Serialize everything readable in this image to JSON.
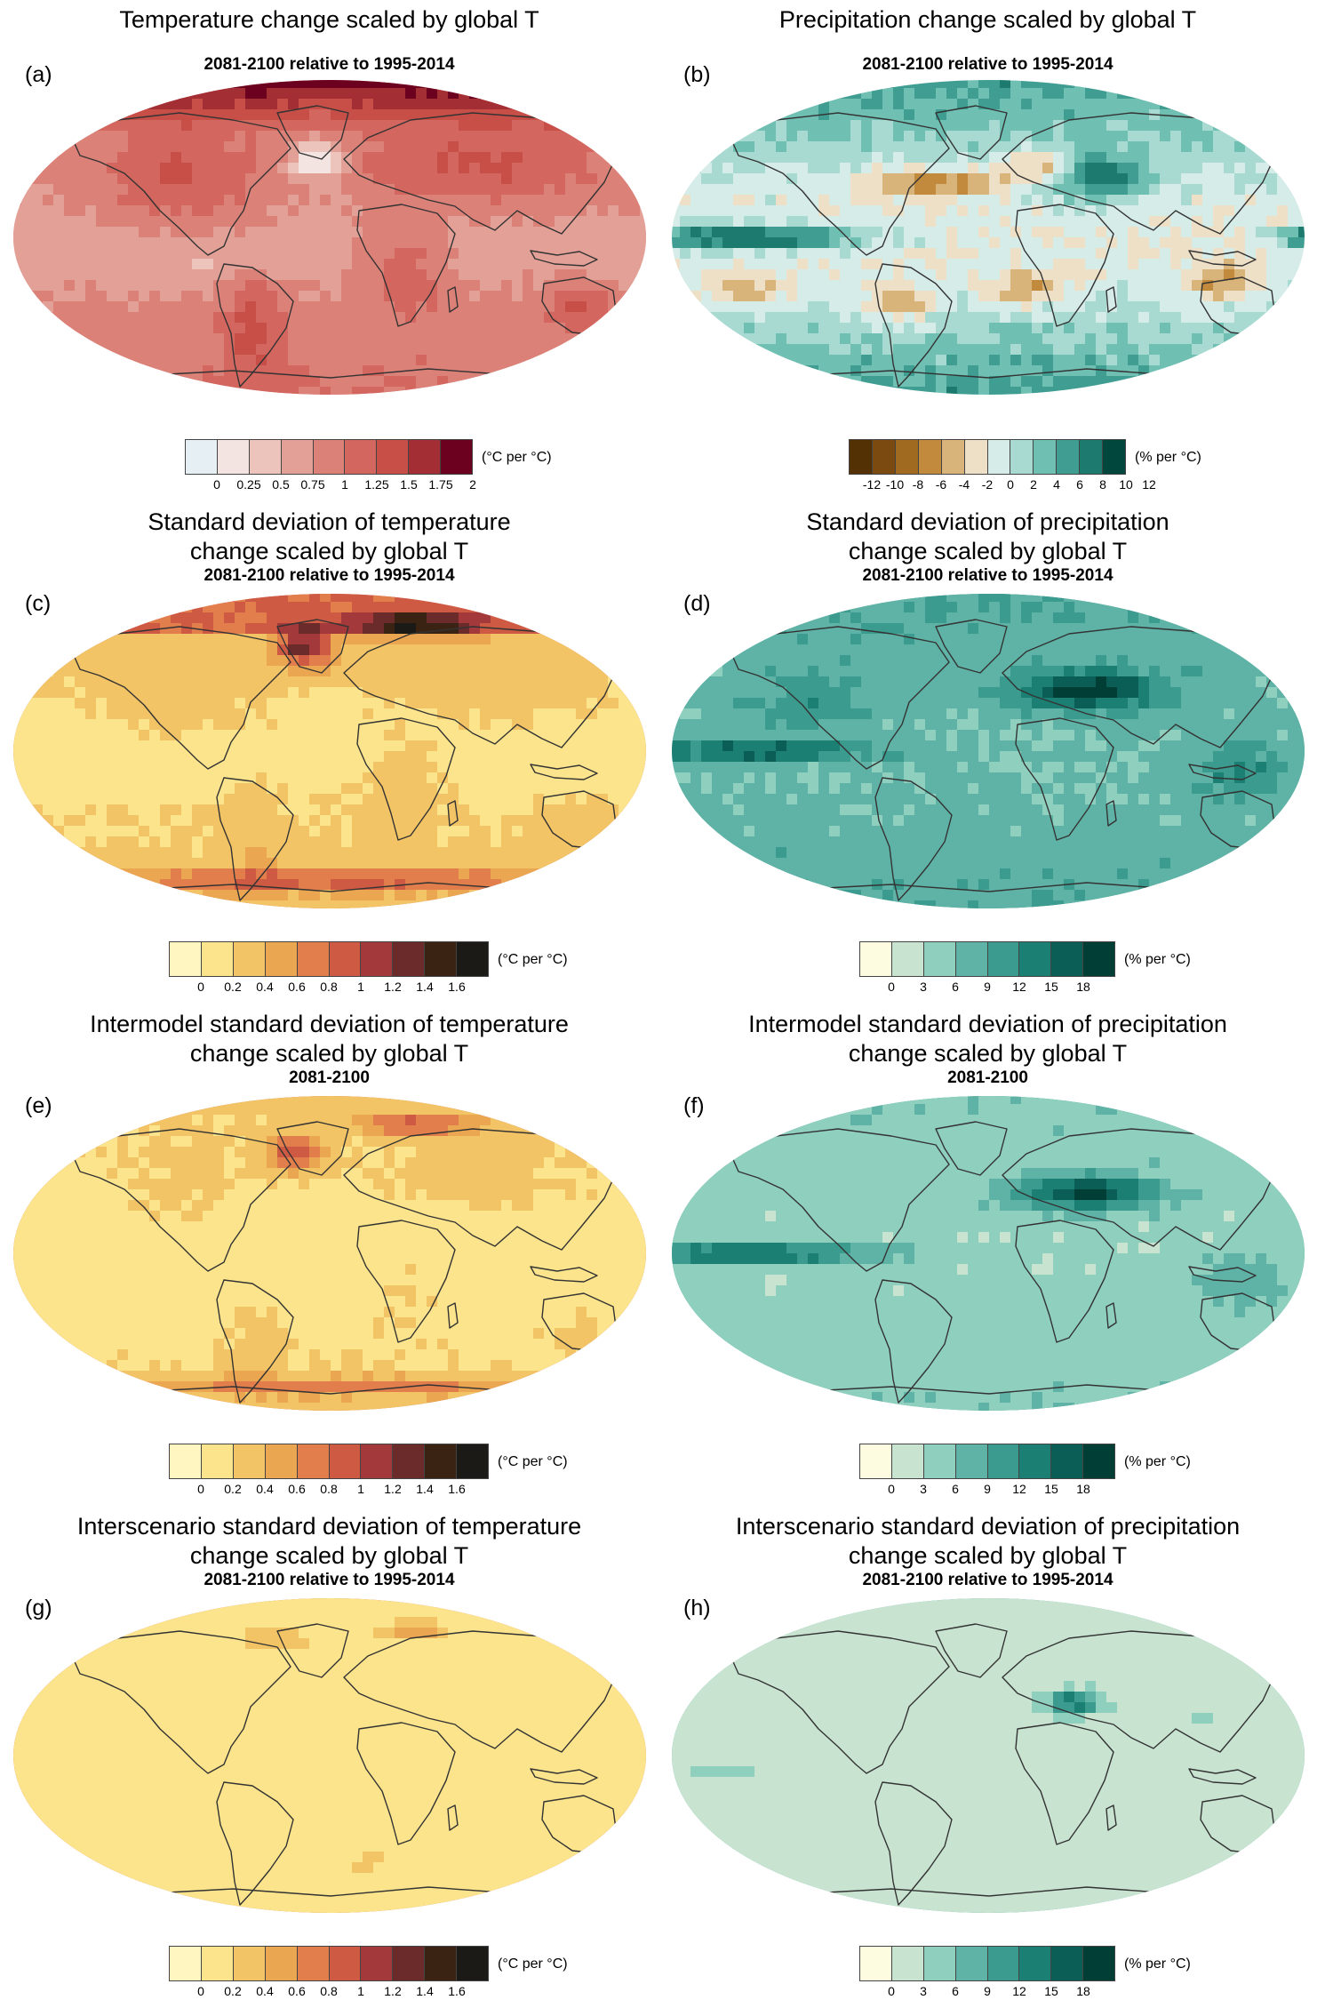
{
  "palettes": {
    "temp_change": [
      "#e5eff4",
      "#f3e4e2",
      "#edc4bc",
      "#e3a097",
      "#dc8178",
      "#d3665e",
      "#c84e48",
      "#a32e34",
      "#6b001f"
    ],
    "precip_change": [
      "#543005",
      "#7a4a10",
      "#a06a21",
      "#c18a3c",
      "#d8b47b",
      "#eee0c6",
      "#d6ece8",
      "#a9dad2",
      "#6fbfb3",
      "#3f9d92",
      "#1c7a6e",
      "#01473e"
    ],
    "temp_sd": [
      "#fff6c2",
      "#fbe48c",
      "#f2c465",
      "#eba651",
      "#e27e4c",
      "#cf5a43",
      "#a3393a",
      "#6b2b2b",
      "#3a2313",
      "#1b1a17"
    ],
    "precip_sd": [
      "#fdfbe0",
      "#c8e4d1",
      "#8fcfbe",
      "#5fb3a6",
      "#3b9b8e",
      "#1c7f73",
      "#0b5e55",
      "#013f36"
    ]
  },
  "panels": [
    {
      "id": "a",
      "label": "(a)",
      "title": "Temperature change scaled by global T",
      "subtitle": "2081-2100 relative to 1995-2014",
      "palette": "temp_change",
      "unit": "(°C per °C)",
      "ticks": [
        "0",
        "0.25",
        "0.5",
        "0.75",
        "1",
        "1.25",
        "1.5",
        "1.75",
        "2"
      ],
      "range": [
        0,
        2.0
      ]
    },
    {
      "id": "b",
      "label": "(b)",
      "title": "Precipitation change scaled by global T",
      "subtitle": "2081-2100 relative to 1995-2014",
      "palette": "precip_change",
      "unit": "(% per °C)",
      "ticks": [
        "-12",
        "-10",
        "-8",
        "-6",
        "-4",
        "-2",
        "0",
        "2",
        "4",
        "6",
        "8",
        "10",
        "12"
      ],
      "range": [
        -12,
        12
      ]
    },
    {
      "id": "c",
      "label": "(c)",
      "title": "Standard deviation of temperature\nchange scaled by global T",
      "subtitle": "2081-2100 relative to 1995-2014",
      "palette": "temp_sd",
      "unit": "(°C per °C)",
      "ticks": [
        "0",
        "0.2",
        "0.4",
        "0.6",
        "0.8",
        "1",
        "1.2",
        "1.4",
        "1.6"
      ],
      "range": [
        0,
        1.6
      ]
    },
    {
      "id": "d",
      "label": "(d)",
      "title": "Standard deviation of precipitation\nchange scaled by global T",
      "subtitle": "2081-2100 relative to 1995-2014",
      "palette": "precip_sd",
      "unit": "(% per °C)",
      "ticks": [
        "0",
        "3",
        "6",
        "9",
        "12",
        "15",
        "18"
      ],
      "range": [
        0,
        18
      ]
    },
    {
      "id": "e",
      "label": "(e)",
      "title": "Intermodel standard deviation of temperature\nchange scaled by global T",
      "subtitle": "2081-2100",
      "palette": "temp_sd",
      "unit": "(°C per °C)",
      "ticks": [
        "0",
        "0.2",
        "0.4",
        "0.6",
        "0.8",
        "1",
        "1.2",
        "1.4",
        "1.6"
      ],
      "range": [
        0,
        1.6
      ]
    },
    {
      "id": "f",
      "label": "(f)",
      "title": "Intermodel standard deviation of precipitation\nchange scaled by global T",
      "subtitle": "2081-2100",
      "palette": "precip_sd",
      "unit": "(% per °C)",
      "ticks": [
        "0",
        "3",
        "6",
        "9",
        "12",
        "15",
        "18"
      ],
      "range": [
        0,
        18
      ]
    },
    {
      "id": "g",
      "label": "(g)",
      "title": "Interscenario standard deviation of temperature\nchange scaled by global T",
      "subtitle": "2081-2100 relative to 1995-2014",
      "palette": "temp_sd",
      "unit": "(°C per °C)",
      "ticks": [
        "0",
        "0.2",
        "0.4",
        "0.6",
        "0.8",
        "1",
        "1.2",
        "1.4",
        "1.6"
      ],
      "range": [
        0,
        1.6
      ]
    },
    {
      "id": "h",
      "label": "(h)",
      "title": "Interscenario standard deviation of precipitation\nchange scaled by global T",
      "subtitle": "2081-2100 relative to 1995-2014",
      "palette": "precip_sd",
      "unit": "(% per °C)",
      "ticks": [
        "0",
        "3",
        "6",
        "9",
        "12",
        "15",
        "18"
      ],
      "range": [
        0,
        18
      ]
    }
  ]
}
